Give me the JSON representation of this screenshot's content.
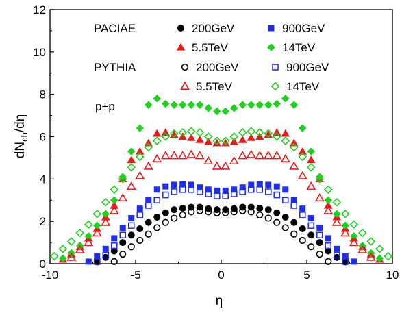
{
  "chart_data": {
    "type": "scatter",
    "xlabel": "η",
    "ylabel": "dN",
    "ylabel_sub": "ch",
    "ylabel_tail": "/dη",
    "xlim": [
      -10,
      10
    ],
    "ylim": [
      0,
      12
    ],
    "xticks": [
      -10,
      -5,
      0,
      5,
      10
    ],
    "yticks": [
      0,
      2,
      4,
      6,
      8,
      10,
      12
    ],
    "grid": false,
    "legend_position": "top",
    "annotation": "p+p",
    "groups": [
      {
        "label": "PACIAE",
        "fill": "solid"
      },
      {
        "label": "PYTHIA",
        "fill": "open"
      }
    ],
    "series": [
      {
        "name": "200GeV",
        "group": "PACIAE",
        "marker": "circle",
        "fill": "solid",
        "color": "#000000",
        "x": [
          -7.25,
          -6.75,
          -6.25,
          -5.75,
          -5.25,
          -4.75,
          -4.25,
          -3.75,
          -3.25,
          -2.75,
          -2.25,
          -1.75,
          -1.25,
          -0.75,
          -0.25,
          0.25,
          0.75,
          1.25,
          1.75,
          2.25,
          2.75,
          3.25,
          3.75,
          4.25,
          4.75,
          5.25,
          5.75,
          6.25,
          6.75,
          7.25
        ],
        "y": [
          0.08,
          0.3,
          0.6,
          1.0,
          1.35,
          1.65,
          1.95,
          2.2,
          2.4,
          2.55,
          2.62,
          2.67,
          2.67,
          2.6,
          2.55,
          2.55,
          2.6,
          2.67,
          2.67,
          2.62,
          2.55,
          2.4,
          2.2,
          1.95,
          1.65,
          1.35,
          1.0,
          0.6,
          0.3,
          0.08
        ]
      },
      {
        "name": "900GeV",
        "group": "PACIAE",
        "marker": "square",
        "fill": "solid",
        "color": "#1f2fe8",
        "x": [
          -7.75,
          -7.25,
          -6.75,
          -6.25,
          -5.75,
          -5.25,
          -4.75,
          -4.25,
          -3.75,
          -3.25,
          -2.75,
          -2.25,
          -1.75,
          -1.25,
          -0.75,
          -0.25,
          0.25,
          0.75,
          1.25,
          1.75,
          2.25,
          2.75,
          3.25,
          3.75,
          4.25,
          4.75,
          5.25,
          5.75,
          6.25,
          6.75,
          7.25,
          7.75
        ],
        "y": [
          0.1,
          0.35,
          0.7,
          1.2,
          1.7,
          2.15,
          2.6,
          3.0,
          3.5,
          3.65,
          3.72,
          3.75,
          3.72,
          3.6,
          3.5,
          3.45,
          3.45,
          3.5,
          3.6,
          3.72,
          3.75,
          3.72,
          3.65,
          3.5,
          3.0,
          2.6,
          2.15,
          1.7,
          1.2,
          0.7,
          0.35,
          0.1
        ]
      },
      {
        "name": "5.5TeV",
        "group": "PACIAE",
        "marker": "triangle",
        "fill": "solid",
        "color": "#e81a1a",
        "x": [
          -9.25,
          -8.75,
          -8.25,
          -7.75,
          -7.25,
          -6.75,
          -6.25,
          -5.75,
          -5.25,
          -4.75,
          -4.25,
          -3.75,
          -3.25,
          -2.75,
          -2.25,
          -1.75,
          -1.25,
          -0.75,
          -0.25,
          0.25,
          0.75,
          1.25,
          1.75,
          2.25,
          2.75,
          3.25,
          3.75,
          4.25,
          4.75,
          5.25,
          5.75,
          6.25,
          6.75,
          7.25,
          7.75,
          8.25,
          8.75,
          9.25
        ],
        "y": [
          0.2,
          0.45,
          0.8,
          1.2,
          1.65,
          2.2,
          2.75,
          4.0,
          4.9,
          5.3,
          5.7,
          6.15,
          6.2,
          6.1,
          6.0,
          5.95,
          5.85,
          5.75,
          5.7,
          5.7,
          5.75,
          5.85,
          5.95,
          6.0,
          6.1,
          6.2,
          6.15,
          5.7,
          5.3,
          4.9,
          4.0,
          2.75,
          2.2,
          1.65,
          1.2,
          0.8,
          0.45,
          0.2
        ]
      },
      {
        "name": "14TeV",
        "group": "PACIAE",
        "marker": "diamond",
        "fill": "solid",
        "color": "#1fd11f",
        "x": [
          -9.25,
          -8.75,
          -8.25,
          -7.75,
          -7.25,
          -6.75,
          -6.25,
          -5.75,
          -5.25,
          -4.75,
          -4.25,
          -3.75,
          -3.25,
          -2.75,
          -2.25,
          -1.75,
          -1.25,
          -0.75,
          -0.25,
          0.25,
          0.75,
          1.25,
          1.75,
          2.25,
          2.75,
          3.25,
          3.75,
          4.25,
          4.75,
          5.25,
          5.75,
          6.25,
          6.75,
          7.25,
          7.75,
          8.25,
          8.75,
          9.25
        ],
        "y": [
          0.25,
          0.5,
          0.85,
          1.3,
          1.8,
          2.35,
          3.0,
          4.1,
          5.3,
          6.4,
          7.5,
          7.8,
          7.55,
          7.5,
          7.5,
          7.5,
          7.5,
          7.35,
          7.2,
          7.2,
          7.35,
          7.5,
          7.5,
          7.5,
          7.5,
          7.55,
          7.8,
          7.5,
          6.4,
          5.3,
          4.1,
          3.0,
          2.35,
          1.8,
          1.3,
          0.85,
          0.5,
          0.25
        ]
      },
      {
        "name": "200GeV",
        "group": "PYTHIA",
        "marker": "circle",
        "fill": "open",
        "color": "#000000",
        "x": [
          -6.25,
          -5.75,
          -5.25,
          -4.75,
          -4.25,
          -3.75,
          -3.25,
          -2.75,
          -2.25,
          -1.75,
          -1.25,
          -0.75,
          -0.25,
          0.25,
          0.75,
          1.25,
          1.75,
          2.25,
          2.75,
          3.25,
          3.75,
          4.25,
          4.75,
          5.25,
          5.75,
          6.25
        ],
        "y": [
          0.1,
          0.45,
          0.8,
          1.1,
          1.4,
          1.7,
          1.95,
          2.15,
          2.3,
          2.45,
          2.5,
          2.45,
          2.4,
          2.4,
          2.45,
          2.5,
          2.45,
          2.3,
          2.15,
          1.95,
          1.7,
          1.4,
          1.1,
          0.8,
          0.45,
          0.1
        ]
      },
      {
        "name": "900GeV",
        "group": "PYTHIA",
        "marker": "square",
        "fill": "open",
        "color": "#1f2fe8",
        "x": [
          -7.25,
          -6.75,
          -6.25,
          -5.75,
          -5.25,
          -4.75,
          -4.25,
          -3.75,
          -3.25,
          -2.75,
          -2.25,
          -1.75,
          -1.25,
          -0.75,
          -0.25,
          0.25,
          0.75,
          1.25,
          1.75,
          2.25,
          2.75,
          3.25,
          3.75,
          4.25,
          4.75,
          5.25,
          5.75,
          6.25,
          6.75,
          7.25
        ],
        "y": [
          0.1,
          0.4,
          0.85,
          1.35,
          1.8,
          2.3,
          2.75,
          3.0,
          3.25,
          3.4,
          3.5,
          3.5,
          3.4,
          3.3,
          3.2,
          3.2,
          3.3,
          3.4,
          3.5,
          3.5,
          3.4,
          3.25,
          3.0,
          2.75,
          2.3,
          1.8,
          1.35,
          0.85,
          0.4,
          0.1
        ]
      },
      {
        "name": "5.5TeV",
        "group": "PYTHIA",
        "marker": "triangle",
        "fill": "open",
        "color": "#e81a1a",
        "x": [
          -8.75,
          -8.25,
          -7.75,
          -7.25,
          -6.75,
          -6.25,
          -5.75,
          -5.25,
          -4.75,
          -4.25,
          -3.75,
          -3.25,
          -2.75,
          -2.25,
          -1.75,
          -1.25,
          -0.75,
          -0.25,
          0.25,
          0.75,
          1.25,
          1.75,
          2.25,
          2.75,
          3.25,
          3.75,
          4.25,
          4.75,
          5.25,
          5.75,
          6.25,
          6.75,
          7.25,
          7.75,
          8.25,
          8.75
        ],
        "y": [
          0.3,
          0.65,
          1.0,
          1.45,
          1.95,
          2.5,
          3.1,
          3.65,
          4.15,
          4.6,
          4.95,
          5.1,
          5.1,
          5.1,
          5.15,
          5.1,
          4.85,
          4.6,
          4.6,
          4.85,
          5.1,
          5.15,
          5.1,
          5.1,
          5.1,
          4.95,
          4.6,
          4.15,
          3.65,
          3.1,
          2.5,
          1.95,
          1.45,
          1.0,
          0.65,
          0.3
        ]
      },
      {
        "name": "14TeV",
        "group": "PYTHIA",
        "marker": "diamond",
        "fill": "open",
        "color": "#1fd11f",
        "x": [
          -9.75,
          -9.25,
          -8.75,
          -8.25,
          -7.75,
          -7.25,
          -6.75,
          -6.25,
          -5.75,
          -5.25,
          -4.75,
          -4.25,
          -3.75,
          -3.25,
          -2.75,
          -2.25,
          -1.75,
          -1.25,
          -0.75,
          -0.25,
          0.25,
          0.75,
          1.25,
          1.75,
          2.25,
          2.75,
          3.25,
          3.75,
          4.25,
          4.75,
          5.25,
          5.75,
          6.25,
          6.75,
          7.25,
          7.75,
          8.25,
          8.75,
          9.25,
          9.75
        ],
        "y": [
          0.35,
          0.7,
          1.05,
          1.45,
          1.85,
          2.35,
          2.9,
          3.5,
          4.0,
          4.55,
          5.05,
          5.5,
          5.8,
          6.0,
          6.15,
          6.2,
          6.25,
          6.2,
          6.0,
          5.8,
          5.8,
          6.0,
          6.2,
          6.25,
          6.2,
          6.15,
          6.0,
          5.8,
          5.5,
          5.05,
          4.55,
          4.0,
          3.5,
          2.9,
          2.35,
          1.85,
          1.45,
          1.05,
          0.7,
          0.35
        ]
      }
    ]
  }
}
